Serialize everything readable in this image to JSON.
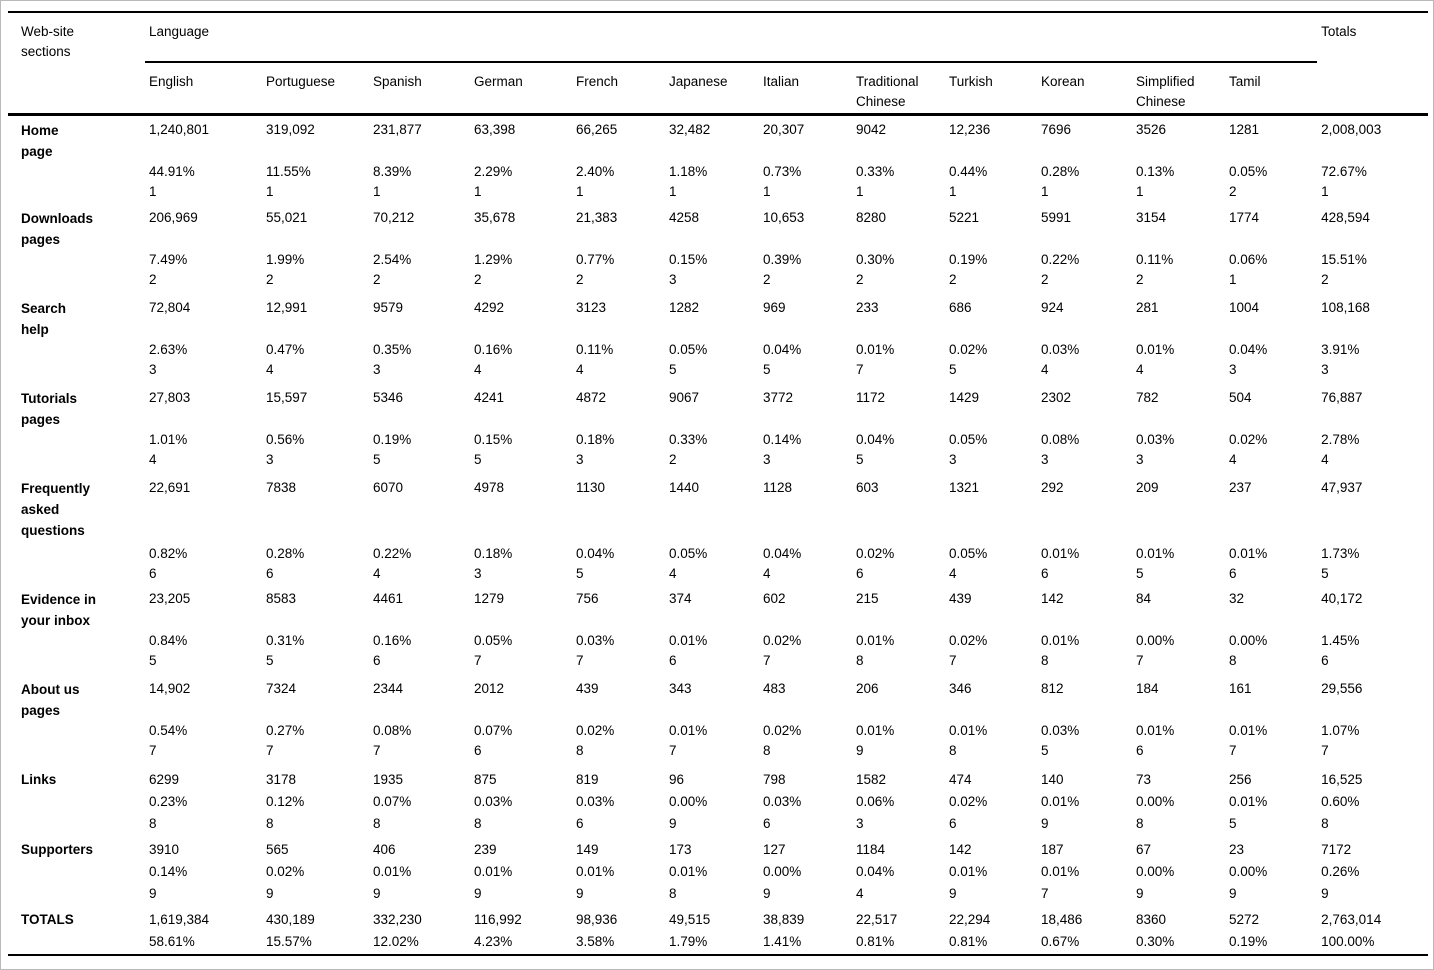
{
  "table": {
    "corner_lines": [
      "Web-site",
      "sections"
    ],
    "group_header": "Language",
    "totals_header": "Totals",
    "columns": [
      "English",
      "Portuguese",
      "Spanish",
      "German",
      "French",
      "Japanese",
      "Italian",
      "Traditional Chinese",
      "Turkish",
      "Korean",
      "Simplified Chinese",
      "Tamil"
    ],
    "rows": [
      {
        "label_lines": [
          "Home",
          "page"
        ],
        "cells": [
          [
            "1,240,801",
            "44.91%",
            "1"
          ],
          [
            "319,092",
            "11.55%",
            "1"
          ],
          [
            "231,877",
            "8.39%",
            "1"
          ],
          [
            "63,398",
            "2.29%",
            "1"
          ],
          [
            "66,265",
            "2.40%",
            "1"
          ],
          [
            "32,482",
            "1.18%",
            "1"
          ],
          [
            "20,307",
            "0.73%",
            "1"
          ],
          [
            "9042",
            "0.33%",
            "1"
          ],
          [
            "12,236",
            "0.44%",
            "1"
          ],
          [
            "7696",
            "0.28%",
            "1"
          ],
          [
            "3526",
            "0.13%",
            "1"
          ],
          [
            "1281",
            "0.05%",
            "2"
          ]
        ],
        "total": [
          "2,008,003",
          "72.67%",
          "1"
        ]
      },
      {
        "label_lines": [
          "Downloads",
          "pages"
        ],
        "cells": [
          [
            "206,969",
            "7.49%",
            "2"
          ],
          [
            "55,021",
            "1.99%",
            "2"
          ],
          [
            "70,212",
            "2.54%",
            "2"
          ],
          [
            "35,678",
            "1.29%",
            "2"
          ],
          [
            "21,383",
            "0.77%",
            "2"
          ],
          [
            "4258",
            "0.15%",
            "3"
          ],
          [
            "10,653",
            "0.39%",
            "2"
          ],
          [
            "8280",
            "0.30%",
            "2"
          ],
          [
            "5221",
            "0.19%",
            "2"
          ],
          [
            "5991",
            "0.22%",
            "2"
          ],
          [
            "3154",
            "0.11%",
            "2"
          ],
          [
            "1774",
            "0.06%",
            "1"
          ]
        ],
        "total": [
          "428,594",
          "15.51%",
          "2"
        ]
      },
      {
        "label_lines": [
          "Search",
          "help"
        ],
        "cells": [
          [
            "72,804",
            "2.63%",
            "3"
          ],
          [
            "12,991",
            "0.47%",
            "4"
          ],
          [
            "9579",
            "0.35%",
            "3"
          ],
          [
            "4292",
            "0.16%",
            "4"
          ],
          [
            "3123",
            "0.11%",
            "4"
          ],
          [
            "1282",
            "0.05%",
            "5"
          ],
          [
            "969",
            "0.04%",
            "5"
          ],
          [
            "233",
            "0.01%",
            "7"
          ],
          [
            "686",
            "0.02%",
            "5"
          ],
          [
            "924",
            "0.03%",
            "4"
          ],
          [
            "281",
            "0.01%",
            "4"
          ],
          [
            "1004",
            "0.04%",
            "3"
          ]
        ],
        "total": [
          "108,168",
          "3.91%",
          "3"
        ]
      },
      {
        "label_lines": [
          "Tutorials",
          "pages"
        ],
        "cells": [
          [
            "27,803",
            "1.01%",
            "4"
          ],
          [
            "15,597",
            "0.56%",
            "3"
          ],
          [
            "5346",
            "0.19%",
            "5"
          ],
          [
            "4241",
            "0.15%",
            "5"
          ],
          [
            "4872",
            "0.18%",
            "3"
          ],
          [
            "9067",
            "0.33%",
            "2"
          ],
          [
            "3772",
            "0.14%",
            "3"
          ],
          [
            "1172",
            "0.04%",
            "5"
          ],
          [
            "1429",
            "0.05%",
            "3"
          ],
          [
            "2302",
            "0.08%",
            "3"
          ],
          [
            "782",
            "0.03%",
            "3"
          ],
          [
            "504",
            "0.02%",
            "4"
          ]
        ],
        "total": [
          "76,887",
          "2.78%",
          "4"
        ]
      },
      {
        "label_lines": [
          "Frequently",
          "asked",
          "questions"
        ],
        "cells": [
          [
            "22,691",
            "0.82%",
            "6"
          ],
          [
            "7838",
            "0.28%",
            "6"
          ],
          [
            "6070",
            "0.22%",
            "4"
          ],
          [
            "4978",
            "0.18%",
            "3"
          ],
          [
            "1130",
            "0.04%",
            "5"
          ],
          [
            "1440",
            "0.05%",
            "4"
          ],
          [
            "1128",
            "0.04%",
            "4"
          ],
          [
            "603",
            "0.02%",
            "6"
          ],
          [
            "1321",
            "0.05%",
            "4"
          ],
          [
            "292",
            "0.01%",
            "6"
          ],
          [
            "209",
            "0.01%",
            "5"
          ],
          [
            "237",
            "0.01%",
            "6"
          ]
        ],
        "total": [
          "47,937",
          "1.73%",
          "5"
        ]
      },
      {
        "label_lines": [
          "Evidence in",
          "your inbox"
        ],
        "cells": [
          [
            "23,205",
            "0.84%",
            "5"
          ],
          [
            "8583",
            "0.31%",
            "5"
          ],
          [
            "4461",
            "0.16%",
            "6"
          ],
          [
            "1279",
            "0.05%",
            "7"
          ],
          [
            "756",
            "0.03%",
            "7"
          ],
          [
            "374",
            "0.01%",
            "6"
          ],
          [
            "602",
            "0.02%",
            "7"
          ],
          [
            "215",
            "0.01%",
            "8"
          ],
          [
            "439",
            "0.02%",
            "7"
          ],
          [
            "142",
            "0.01%",
            "8"
          ],
          [
            "84",
            "0.00%",
            "7"
          ],
          [
            "32",
            "0.00%",
            "8"
          ]
        ],
        "total": [
          "40,172",
          "1.45%",
          "6"
        ]
      },
      {
        "label_lines": [
          "About us",
          "pages"
        ],
        "cells": [
          [
            "14,902",
            "0.54%",
            "7"
          ],
          [
            "7324",
            "0.27%",
            "7"
          ],
          [
            "2344",
            "0.08%",
            "7"
          ],
          [
            "2012",
            "0.07%",
            "6"
          ],
          [
            "439",
            "0.02%",
            "8"
          ],
          [
            "343",
            "0.01%",
            "7"
          ],
          [
            "483",
            "0.02%",
            "8"
          ],
          [
            "206",
            "0.01%",
            "9"
          ],
          [
            "346",
            "0.01%",
            "8"
          ],
          [
            "812",
            "0.03%",
            "5"
          ],
          [
            "184",
            "0.01%",
            "6"
          ],
          [
            "161",
            "0.01%",
            "7"
          ]
        ],
        "total": [
          "29,556",
          "1.07%",
          "7"
        ]
      },
      {
        "label_lines": [
          "Links"
        ],
        "cells": [
          [
            "6299",
            "0.23%",
            "8"
          ],
          [
            "3178",
            "0.12%",
            "8"
          ],
          [
            "1935",
            "0.07%",
            "8"
          ],
          [
            "875",
            "0.03%",
            "8"
          ],
          [
            "819",
            "0.03%",
            "6"
          ],
          [
            "96",
            "0.00%",
            "9"
          ],
          [
            "798",
            "0.03%",
            "6"
          ],
          [
            "1582",
            "0.06%",
            "3"
          ],
          [
            "474",
            "0.02%",
            "6"
          ],
          [
            "140",
            "0.01%",
            "9"
          ],
          [
            "73",
            "0.00%",
            "8"
          ],
          [
            "256",
            "0.01%",
            "5"
          ]
        ],
        "total": [
          "16,525",
          "0.60%",
          "8"
        ]
      },
      {
        "label_lines": [
          "Supporters"
        ],
        "cells": [
          [
            "3910",
            "0.14%",
            "9"
          ],
          [
            "565",
            "0.02%",
            "9"
          ],
          [
            "406",
            "0.01%",
            "9"
          ],
          [
            "239",
            "0.01%",
            "9"
          ],
          [
            "149",
            "0.01%",
            "9"
          ],
          [
            "173",
            "0.01%",
            "8"
          ],
          [
            "127",
            "0.00%",
            "9"
          ],
          [
            "1184",
            "0.04%",
            "4"
          ],
          [
            "142",
            "0.01%",
            "9"
          ],
          [
            "187",
            "0.01%",
            "7"
          ],
          [
            "67",
            "0.00%",
            "9"
          ],
          [
            "23",
            "0.00%",
            "9"
          ]
        ],
        "total": [
          "7172",
          "0.26%",
          "9"
        ]
      },
      {
        "label_lines": [
          "TOTALS"
        ],
        "bold": true,
        "cells": [
          [
            "1,619,384",
            "58.61%"
          ],
          [
            "430,189",
            "15.57%"
          ],
          [
            "332,230",
            "12.02%"
          ],
          [
            "116,992",
            "4.23%"
          ],
          [
            "98,936",
            "3.58%"
          ],
          [
            "49,515",
            "1.79%"
          ],
          [
            "38,839",
            "1.41%"
          ],
          [
            "22,517",
            "0.81%"
          ],
          [
            "22,294",
            "0.81%"
          ],
          [
            "18,486",
            "0.67%"
          ],
          [
            "8360",
            "0.30%"
          ],
          [
            "5272",
            "0.19%"
          ]
        ],
        "total": [
          "2,763,014",
          "100.00%"
        ]
      }
    ]
  }
}
